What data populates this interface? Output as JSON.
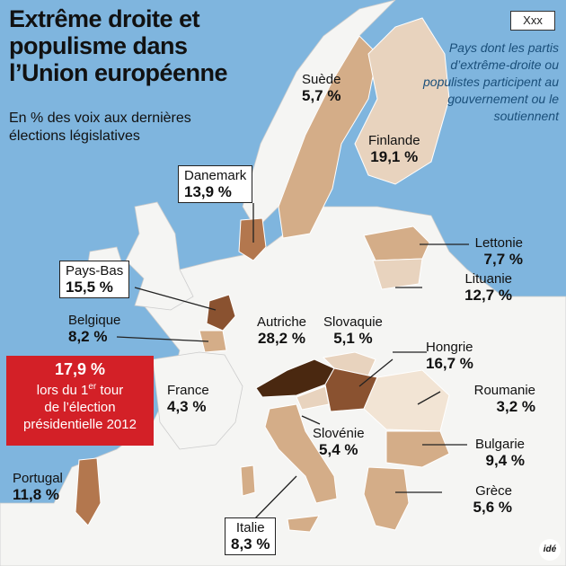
{
  "title": "Extrême droite et populisme dans l’Union européenne",
  "subtitle": "En % des voix aux dernières élections législatives",
  "legend": {
    "box_label": "Xxx",
    "text": "Pays dont les partis d’extrême-droite ou populistes participent au gouvernement ou le soutiennent"
  },
  "colors": {
    "sea": "#7fb5de",
    "land_no_data": "#f5f5f3",
    "level_1": "#e8d3be",
    "level_2": "#d4ad88",
    "level_3": "#b3774e",
    "level_4": "#8a5230",
    "level_5": "#4a2810",
    "highlight_red": "#d32027"
  },
  "countries": [
    {
      "name": "Suède",
      "value": "5,7 %",
      "boxed": false
    },
    {
      "name": "Finlande",
      "value": "19,1 %",
      "boxed": false
    },
    {
      "name": "Danemark",
      "value": "13,9 %",
      "boxed": true
    },
    {
      "name": "Lettonie",
      "value": "7,7 %",
      "boxed": false
    },
    {
      "name": "Lituanie",
      "value": "12,7 %",
      "boxed": false
    },
    {
      "name": "Pays-Bas",
      "value": "15,5 %",
      "boxed": true
    },
    {
      "name": "Belgique",
      "value": "8,2 %",
      "boxed": false
    },
    {
      "name": "Autriche",
      "value": "28,2 %",
      "boxed": false
    },
    {
      "name": "Slovaquie",
      "value": "5,1 %",
      "boxed": false
    },
    {
      "name": "Hongrie",
      "value": "16,7 %",
      "boxed": false
    },
    {
      "name": "France",
      "value": "4,3 %",
      "boxed": false
    },
    {
      "name": "Roumanie",
      "value": "3,2 %",
      "boxed": false
    },
    {
      "name": "Slovénie",
      "value": "5,4 %",
      "boxed": false
    },
    {
      "name": "Bulgarie",
      "value": "9,4 %",
      "boxed": false
    },
    {
      "name": "Portugal",
      "value": "11,8 %",
      "boxed": false
    },
    {
      "name": "Grèce",
      "value": "5,6 %",
      "boxed": false
    },
    {
      "name": "Italie",
      "value": "8,3 %",
      "boxed": true
    }
  ],
  "france_presidential": {
    "value": "17,9 %",
    "line1": "lors du 1",
    "sup": "er",
    "line1b": " tour",
    "line2": "de l’élection",
    "line3": "présidentielle 2012"
  },
  "logo": "idé"
}
